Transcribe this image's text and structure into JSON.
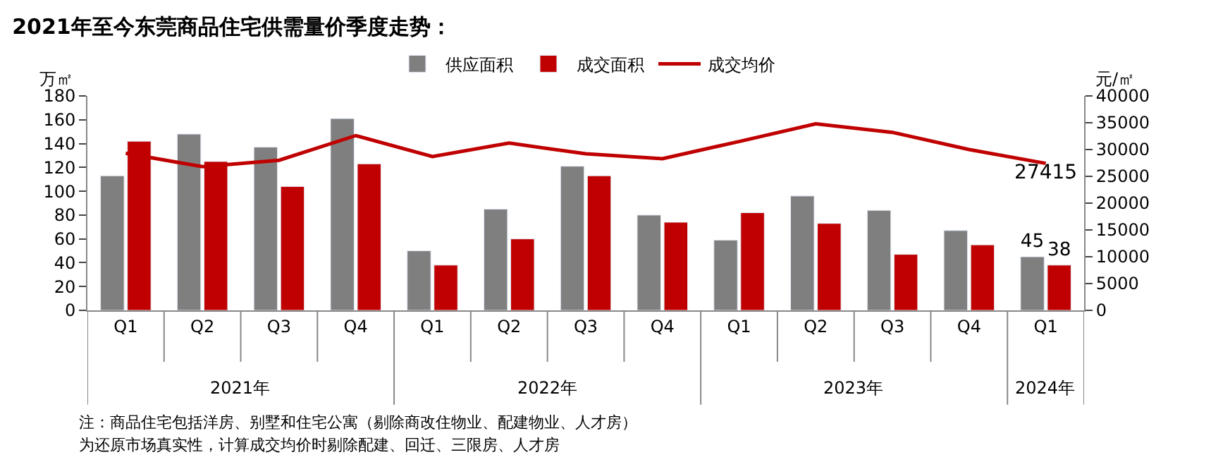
{
  "chart_data": {
    "type": "bar",
    "title": "2021年至今东莞商品住宅供需量价季度走势：",
    "categories": [
      "Q1",
      "Q2",
      "Q3",
      "Q4",
      "Q1",
      "Q2",
      "Q3",
      "Q4",
      "Q1",
      "Q2",
      "Q3",
      "Q4",
      "Q1"
    ],
    "series": [
      {
        "name": "供应面积",
        "color": "#7f7f7f",
        "values": [
          113,
          148,
          137,
          161,
          50,
          85,
          121,
          80,
          59,
          96,
          84,
          67,
          45
        ],
        "value_labels": [
          null,
          null,
          null,
          null,
          null,
          null,
          null,
          null,
          null,
          null,
          null,
          null,
          "45"
        ]
      },
      {
        "name": "成交面积",
        "color": "#c00000",
        "values": [
          142,
          125,
          104,
          123,
          38,
          60,
          113,
          74,
          82,
          73,
          47,
          55,
          38
        ],
        "value_labels": [
          null,
          null,
          null,
          null,
          null,
          null,
          null,
          null,
          null,
          null,
          null,
          null,
          "38"
        ]
      },
      {
        "name": "成交均价",
        "type": "line",
        "axis": "y2",
        "color": "#c00000",
        "values": [
          29300,
          26800,
          28000,
          32600,
          28700,
          31200,
          29200,
          28300,
          31500,
          34800,
          33200,
          30000,
          27415
        ],
        "value_labels": [
          null,
          null,
          null,
          null,
          null,
          null,
          null,
          null,
          null,
          null,
          null,
          null,
          "27415"
        ]
      }
    ],
    "ylabel": "万㎡",
    "y2label": "元/㎡",
    "ylim": [
      0,
      180
    ],
    "yticks": [
      0,
      20,
      40,
      60,
      80,
      100,
      120,
      140,
      160,
      180
    ],
    "y2lim": [
      0,
      40000
    ],
    "y2ticks": [
      0,
      5000,
      10000,
      15000,
      20000,
      25000,
      30000,
      35000,
      40000
    ],
    "legend": "top",
    "marker": "none",
    "line_style": "solid",
    "annotations": [
      "2021年",
      "2022年",
      "2023年",
      "2024年",
      "注：商品住宅包括洋房、别墅和住宅公寓（剔除商改住物业、配建物业、人才房）",
      "为还原市场真实性，计算成交均价时剔除配建、回迁、三限房、人才房"
    ]
  }
}
